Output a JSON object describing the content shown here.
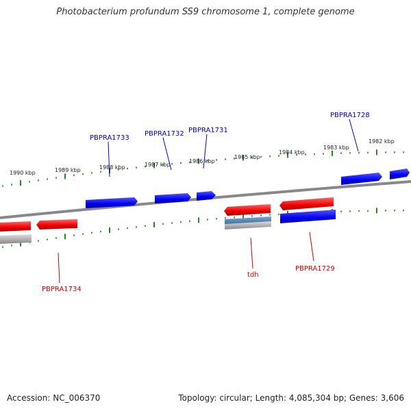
{
  "title": "Photobacterium profundum SS9 chromosome 1, complete genome",
  "footer": {
    "accession": "Accession: NC_006370",
    "topology": "Topology: circular; Length: 4,085,304 bp; Genes: 3,606"
  },
  "colors": {
    "forward_gene": "#0000ee",
    "reverse_gene": "#ee0000",
    "rna_gene": "#4a7aa8",
    "pseudo_gene": "#aaaaaa",
    "tick": "#228822",
    "backbone": "#888888",
    "forward_label": "#0000cc",
    "reverse_label": "#cc0000"
  },
  "scale_labels": {
    "upper": [
      "1990 kbp",
      "1989 kbp",
      "1988 kbp",
      "1987 kbp",
      "1986 kbp",
      "1985 kbp",
      "1984 kbp",
      "1983 kbp",
      "1982 kbp"
    ]
  },
  "gene_labels": {
    "forward": [
      "PBPRA1733",
      "PBPRA1732",
      "PBPRA1731",
      "PBPRA1728"
    ],
    "reverse": [
      "PBPRA1734",
      "tdh",
      "PBPRA1729"
    ]
  }
}
